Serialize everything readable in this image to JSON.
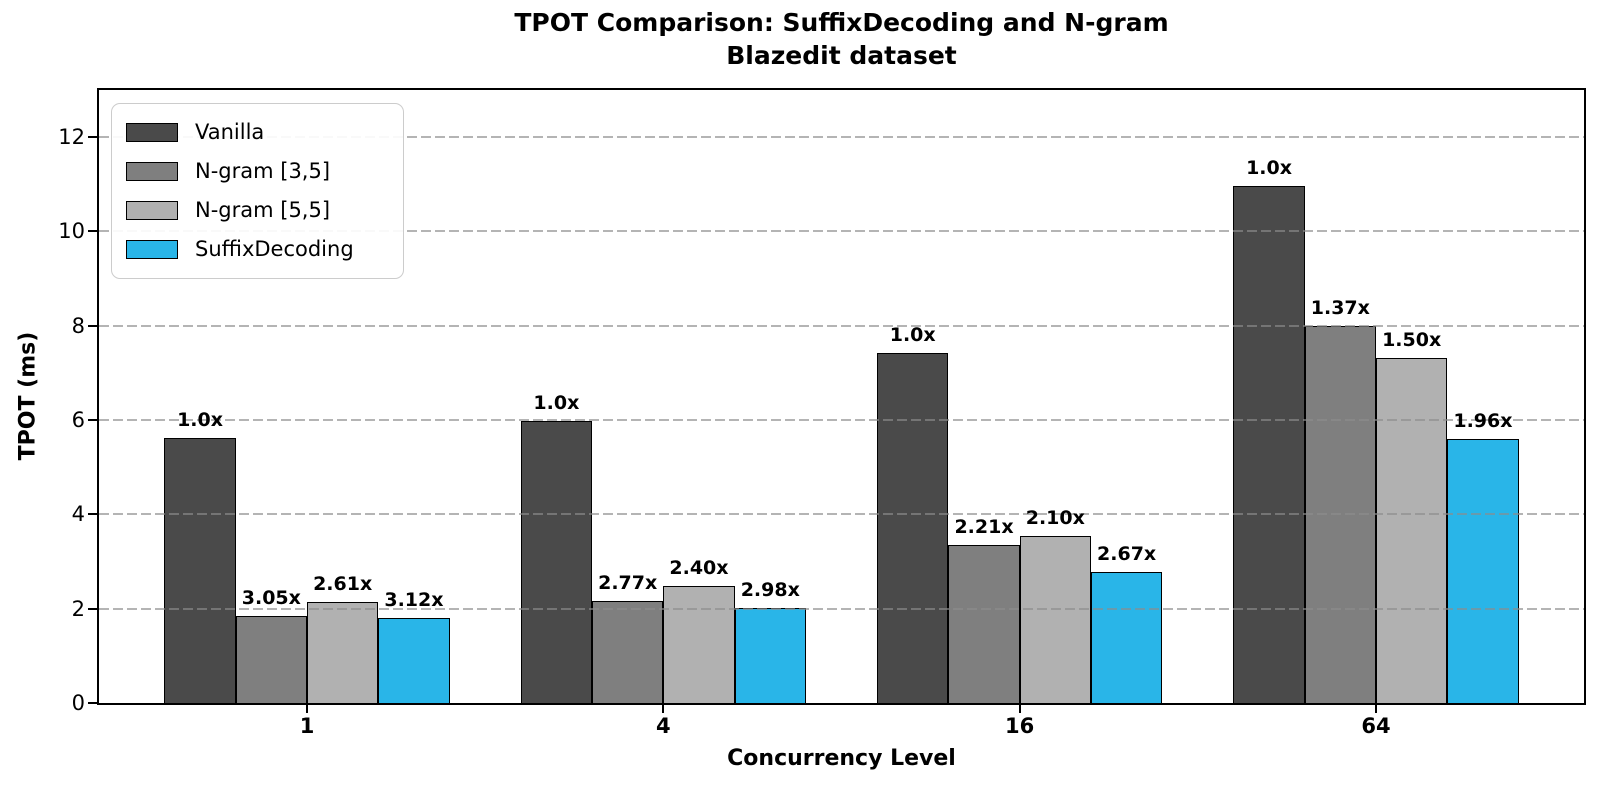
{
  "chart_data": {
    "type": "bar",
    "title": "TPOT Comparison: SuffixDecoding and N-gram",
    "subtitle": "Blazedit dataset",
    "xlabel": "Concurrency Level",
    "ylabel": "TPOT (ms)",
    "categories": [
      "1",
      "4",
      "16",
      "64"
    ],
    "ylim": [
      0,
      13
    ],
    "y_ticks": [
      0,
      2,
      4,
      6,
      8,
      10,
      12
    ],
    "grid": "horizontal dashed, drawn over bars",
    "legend_position": "upper-left",
    "bar_edge_color": "#000000",
    "series": [
      {
        "name": "Vanilla",
        "color": "#4a4a4a",
        "values": [
          5.62,
          5.98,
          7.43,
          10.96
        ],
        "bar_labels": [
          "1.0x",
          "1.0x",
          "1.0x",
          "1.0x"
        ]
      },
      {
        "name": "N-gram [3,5]",
        "color": "#7f7f7f",
        "values": [
          1.84,
          2.16,
          3.36,
          8.0
        ],
        "bar_labels": [
          "3.05x",
          "2.77x",
          "2.21x",
          "1.37x"
        ]
      },
      {
        "name": "N-gram [5,5]",
        "color": "#b1b1b1",
        "values": [
          2.15,
          2.49,
          3.54,
          7.31
        ],
        "bar_labels": [
          "2.61x",
          "2.40x",
          "2.10x",
          "1.50x"
        ]
      },
      {
        "name": "SuffixDecoding",
        "color": "#29b5e8",
        "values": [
          1.8,
          2.01,
          2.78,
          5.59
        ],
        "bar_labels": [
          "3.12x",
          "2.98x",
          "2.67x",
          "1.96x"
        ]
      }
    ]
  }
}
